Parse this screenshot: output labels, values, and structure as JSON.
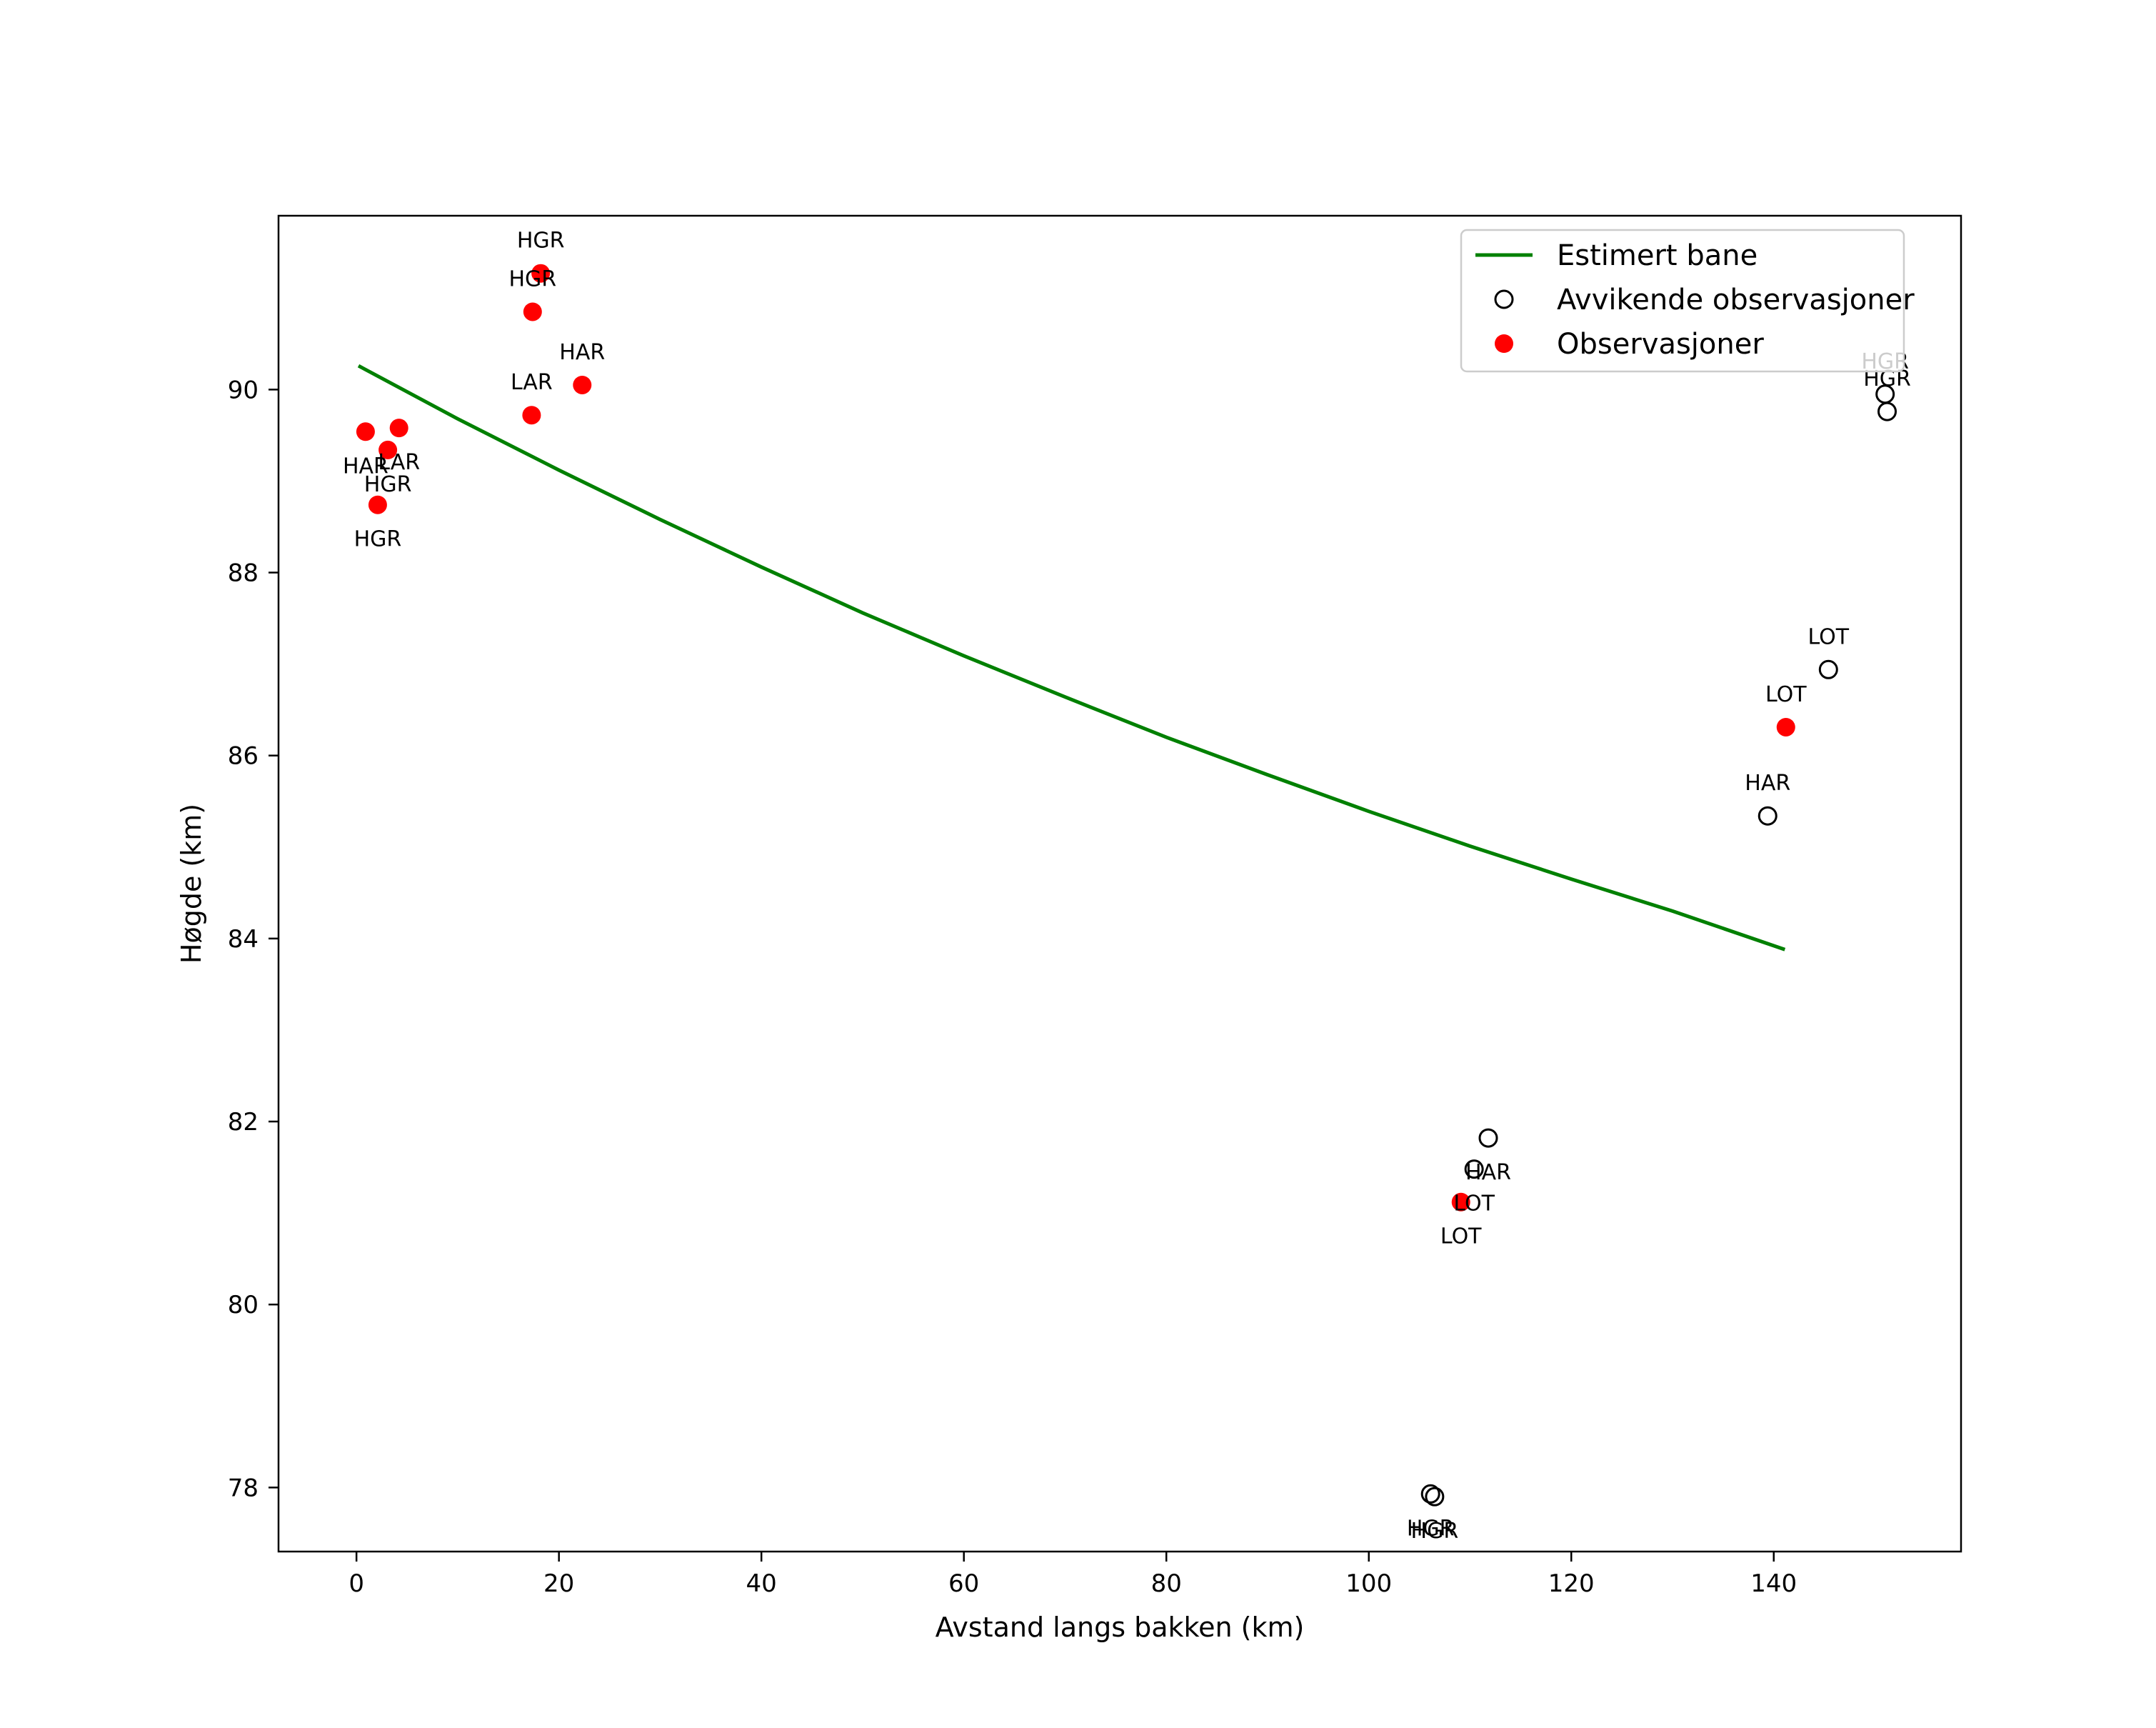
{
  "chart_data": {
    "type": "scatter",
    "title": "",
    "xlabel": "Avstand langs bakken (km)",
    "ylabel": "Høgde (km)",
    "xlim": [
      -7.7,
      158.5
    ],
    "ylim": [
      77.3,
      91.9
    ],
    "xticks": [
      0,
      20,
      40,
      60,
      80,
      100,
      120,
      140
    ],
    "yticks": [
      78,
      80,
      82,
      84,
      86,
      88,
      90
    ],
    "legend": {
      "position": "top-right",
      "entries": [
        {
          "key": "trajectory",
          "label": "Estimert bane",
          "style": "line",
          "color": "#008000"
        },
        {
          "key": "outliers",
          "label": "Avvikende observasjoner",
          "style": "open-circle",
          "color": "#000000"
        },
        {
          "key": "observations",
          "label": "Observasjoner",
          "style": "filled-circle",
          "color": "#ff0000"
        }
      ]
    },
    "trajectory": {
      "name": "Estimert bane",
      "color": "#008000",
      "points": [
        {
          "x": 0.2,
          "y": 90.26
        },
        {
          "x": 10,
          "y": 89.68
        },
        {
          "x": 20,
          "y": 89.12
        },
        {
          "x": 30,
          "y": 88.58
        },
        {
          "x": 40,
          "y": 88.06
        },
        {
          "x": 50,
          "y": 87.56
        },
        {
          "x": 60,
          "y": 87.09
        },
        {
          "x": 70,
          "y": 86.64
        },
        {
          "x": 80,
          "y": 86.2
        },
        {
          "x": 90,
          "y": 85.79
        },
        {
          "x": 100,
          "y": 85.39
        },
        {
          "x": 110,
          "y": 85.01
        },
        {
          "x": 120,
          "y": 84.65
        },
        {
          "x": 130,
          "y": 84.3
        },
        {
          "x": 141.1,
          "y": 83.88
        }
      ]
    },
    "observations": {
      "name": "Observasjoner",
      "color": "#ff0000",
      "points": [
        {
          "x": 0.9,
          "y": 89.54,
          "station": "HAR",
          "label_pos": "below"
        },
        {
          "x": 3.1,
          "y": 89.34,
          "station": "HGR",
          "label_pos": "below"
        },
        {
          "x": 4.2,
          "y": 89.58,
          "station": "LAR",
          "label_pos": "below"
        },
        {
          "x": 2.1,
          "y": 88.74,
          "station": "HGR",
          "label_pos": "below"
        },
        {
          "x": 18.2,
          "y": 91.27,
          "station": "HGR",
          "label_pos": "above"
        },
        {
          "x": 17.4,
          "y": 90.85,
          "station": "HGR",
          "label_pos": "above"
        },
        {
          "x": 22.3,
          "y": 90.05,
          "station": "HAR",
          "label_pos": "above"
        },
        {
          "x": 17.3,
          "y": 89.72,
          "station": "LAR",
          "label_pos": "above"
        },
        {
          "x": 109.1,
          "y": 81.12,
          "station": "LOT",
          "label_pos": "below"
        },
        {
          "x": 141.2,
          "y": 86.31,
          "station": "LOT",
          "label_pos": "above"
        }
      ]
    },
    "outliers": {
      "name": "Avvikende observasjoner",
      "color": "#000000",
      "points": [
        {
          "x": 111.8,
          "y": 81.82,
          "station": "HAR",
          "label_pos": "below"
        },
        {
          "x": 110.4,
          "y": 81.48,
          "station": "LOT",
          "label_pos": "below"
        },
        {
          "x": 106.1,
          "y": 77.93,
          "station": "HGR",
          "label_pos": "below"
        },
        {
          "x": 106.5,
          "y": 77.9,
          "station": "HGR",
          "label_pos": "below"
        },
        {
          "x": 139.4,
          "y": 85.34,
          "station": "HAR",
          "label_pos": "above"
        },
        {
          "x": 145.4,
          "y": 86.94,
          "station": "LOT",
          "label_pos": "above"
        },
        {
          "x": 151.0,
          "y": 89.95,
          "station": "HGR",
          "label_pos": "above"
        },
        {
          "x": 151.2,
          "y": 89.76,
          "station": "HGR",
          "label_pos": "above"
        }
      ]
    }
  }
}
